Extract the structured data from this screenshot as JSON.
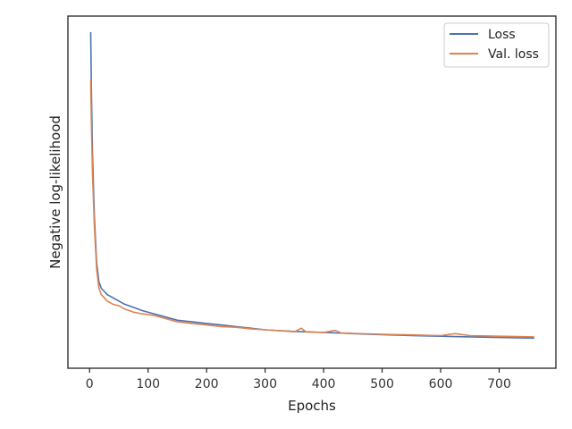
{
  "chart_data": {
    "type": "line",
    "title": "",
    "xlabel": "Epochs",
    "ylabel": "Negative log-likelihood",
    "xlim": [
      -37,
      797
    ],
    "ylim": [
      -0.05,
      1.05
    ],
    "y_tick_labels_shown": false,
    "x_ticks": [
      0,
      100,
      200,
      300,
      400,
      500,
      600,
      700
    ],
    "x_tick_labels": [
      "0",
      "100",
      "200",
      "300",
      "400",
      "500",
      "600",
      "700"
    ],
    "grid": false,
    "legend_position": "top-right",
    "series": [
      {
        "name": "Loss",
        "color": "#4c72b0",
        "x": [
          2,
          3,
          5,
          8,
          12,
          16,
          20,
          25,
          30,
          40,
          50,
          60,
          75,
          90,
          110,
          130,
          150,
          175,
          200,
          225,
          250,
          275,
          300,
          350,
          400,
          450,
          500,
          550,
          600,
          650,
          700,
          760
        ],
        "y": [
          1.0,
          0.83,
          0.62,
          0.43,
          0.28,
          0.22,
          0.2,
          0.19,
          0.18,
          0.17,
          0.16,
          0.15,
          0.14,
          0.13,
          0.12,
          0.11,
          0.1,
          0.095,
          0.09,
          0.085,
          0.08,
          0.075,
          0.07,
          0.065,
          0.062,
          0.058,
          0.055,
          0.052,
          0.05,
          0.048,
          0.046,
          0.044
        ]
      },
      {
        "name": "Val. loss",
        "color": "#dd8452",
        "x": [
          2,
          3,
          5,
          8,
          12,
          16,
          20,
          25,
          30,
          40,
          50,
          60,
          75,
          90,
          110,
          130,
          150,
          175,
          200,
          225,
          250,
          275,
          300,
          350,
          362,
          370,
          400,
          420,
          430,
          450,
          500,
          550,
          600,
          625,
          650,
          700,
          760
        ],
        "y": [
          0.85,
          0.72,
          0.56,
          0.4,
          0.26,
          0.2,
          0.18,
          0.17,
          0.16,
          0.15,
          0.145,
          0.135,
          0.125,
          0.12,
          0.115,
          0.105,
          0.095,
          0.09,
          0.085,
          0.08,
          0.078,
          0.073,
          0.07,
          0.064,
          0.075,
          0.063,
          0.062,
          0.068,
          0.06,
          0.059,
          0.056,
          0.054,
          0.052,
          0.058,
          0.052,
          0.05,
          0.048
        ]
      }
    ]
  }
}
